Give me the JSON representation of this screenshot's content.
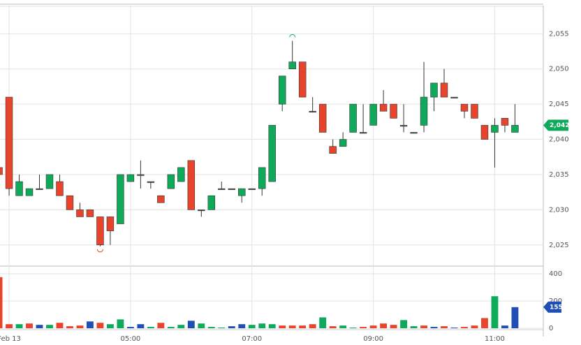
{
  "chart_data": [
    {
      "type": "candlestick",
      "x": [
        -1,
        0,
        1,
        2,
        3,
        4,
        5,
        6,
        7,
        8,
        9,
        10,
        11,
        12,
        13,
        14,
        15,
        16,
        17,
        18,
        19,
        20,
        21,
        22,
        23,
        24,
        25,
        26,
        27,
        28,
        29,
        30,
        31,
        32,
        33,
        34,
        35,
        36,
        37,
        38,
        39,
        40,
        41,
        42,
        43,
        44,
        45,
        46,
        47,
        48,
        49,
        50
      ],
      "open": [
        2036,
        2046,
        2032,
        2032,
        2033,
        2033,
        2034,
        2032,
        2030,
        2030,
        2029,
        2029,
        2028,
        2034,
        2035,
        2034,
        2032,
        2033,
        2034,
        2037,
        2030,
        2030,
        2033,
        2033,
        2032,
        2033,
        2033,
        2034,
        2045,
        2050,
        2051,
        2044,
        2045,
        2039,
        2039,
        2041,
        2041,
        2042,
        2045,
        2045,
        2042,
        2041,
        2042,
        2046,
        2048,
        2046,
        2045,
        2045,
        2042,
        2041,
        2043,
        2041
      ],
      "high": [
        2036,
        2046,
        2035,
        2033,
        2035,
        2035,
        2035,
        2032,
        2031,
        2030,
        2029,
        2029,
        2035,
        2035,
        2037,
        2034,
        2032,
        2035,
        2036,
        2037,
        2030,
        2032,
        2034,
        2033,
        2033,
        2033,
        2036,
        2042,
        2049,
        2054,
        2051,
        2046,
        2045,
        2040,
        2041,
        2045,
        2045,
        2045,
        2047,
        2045,
        2045,
        2041,
        2051,
        2048,
        2050,
        2046,
        2045,
        2045,
        2042,
        2043,
        2043,
        2045
      ],
      "low": [
        2035,
        2032,
        2032,
        2032,
        2033,
        2033,
        2032,
        2030,
        2029,
        2029,
        2024.8,
        2025,
        2028,
        2034,
        2033,
        2033,
        2031,
        2033,
        2034,
        2030,
        2029,
        2030,
        2033,
        2033,
        2031,
        2033,
        2032,
        2034,
        2044,
        2050,
        2046,
        2044,
        2041,
        2038,
        2039,
        2041,
        2041,
        2042,
        2044,
        2043,
        2041,
        2041,
        2041,
        2044,
        2046,
        2046,
        2043,
        2043,
        2040,
        2036,
        2041,
        2041
      ],
      "close": [
        2035,
        2033,
        2034,
        2033,
        2033,
        2035,
        2032,
        2030,
        2029,
        2029,
        2025,
        2027,
        2035,
        2035,
        2035,
        2034,
        2031,
        2035,
        2036,
        2030,
        2030,
        2032,
        2033,
        2033,
        2033,
        2033,
        2036,
        2042,
        2049,
        2051,
        2046,
        2044,
        2041,
        2038,
        2040,
        2045,
        2041,
        2045,
        2044,
        2043,
        2042,
        2041,
        2046,
        2048,
        2046,
        2046,
        2044,
        2043,
        2040,
        2042,
        2042,
        2042
      ],
      "up_color": "#0eaa5a",
      "down_color": "#e8442c",
      "flat_color": "#444444",
      "last_value_label": "2,042",
      "xlim": [
        -0.9,
        52.8
      ],
      "xticks": [
        {
          "value": 0,
          "label": "Feb 13"
        },
        {
          "value": 12,
          "label": "05:00"
        },
        {
          "value": 24,
          "label": "07:00"
        },
        {
          "value": 36,
          "label": "09:00"
        },
        {
          "value": 48,
          "label": "11:00"
        }
      ],
      "ylim": [
        2022.1,
        2059
      ],
      "yticks": [
        {
          "value": 2025,
          "label": "2,025"
        },
        {
          "value": 2030,
          "label": "2,030"
        },
        {
          "value": 2035,
          "label": "2,035"
        },
        {
          "value": 2040,
          "label": "2,040"
        },
        {
          "value": 2045,
          "label": "2,045"
        },
        {
          "value": 2050,
          "label": "2,050"
        },
        {
          "value": 2055,
          "label": "2,055"
        }
      ],
      "grid": true
    },
    {
      "type": "bar",
      "x": [
        -1,
        0,
        1,
        2,
        3,
        4,
        5,
        6,
        7,
        8,
        9,
        10,
        11,
        12,
        13,
        14,
        15,
        16,
        17,
        18,
        19,
        20,
        21,
        22,
        23,
        24,
        25,
        26,
        27,
        28,
        29,
        30,
        31,
        32,
        33,
        34,
        35,
        36,
        37,
        38,
        39,
        40,
        41,
        42,
        43,
        44,
        45,
        46,
        47,
        48,
        49,
        50
      ],
      "values": [
        375,
        30,
        30,
        35,
        25,
        25,
        40,
        15,
        20,
        50,
        40,
        30,
        65,
        10,
        30,
        10,
        40,
        10,
        25,
        55,
        35,
        10,
        5,
        15,
        30,
        25,
        35,
        30,
        20,
        20,
        20,
        30,
        80,
        15,
        20,
        5,
        10,
        20,
        35,
        25,
        60,
        15,
        20,
        10,
        15,
        5,
        10,
        20,
        75,
        235,
        20,
        155
      ],
      "colors": [
        "#e8442c",
        "#e8442c",
        "#0eaa5a",
        "#e8442c",
        "#1f4fb5",
        "#0eaa5a",
        "#e8442c",
        "#e8442c",
        "#e8442c",
        "#1f4fb5",
        "#e8442c",
        "#0eaa5a",
        "#0eaa5a",
        "#1f4fb5",
        "#1f4fb5",
        "#0eaa5a",
        "#e8442c",
        "#0eaa5a",
        "#0eaa5a",
        "#1f4fb5",
        "#0eaa5a",
        "#0eaa5a",
        "#0eaa5a",
        "#1f4fb5",
        "#1f4fb5",
        "#0eaa5a",
        "#0eaa5a",
        "#0eaa5a",
        "#e8442c",
        "#e8442c",
        "#e8442c",
        "#e8442c",
        "#0eaa5a",
        "#e8442c",
        "#0eaa5a",
        "#0eaa5a",
        "#e8442c",
        "#e8442c",
        "#e8442c",
        "#e8442c",
        "#0eaa5a",
        "#0eaa5a",
        "#e8442c",
        "#1f4fb5",
        "#e8442c",
        "#1f4fb5",
        "#e8442c",
        "#e8442c",
        "#e8442c",
        "#0eaa5a",
        "#1f4fb5",
        "#1f4fb5"
      ],
      "xlim": [
        -0.9,
        52.8
      ],
      "ylim": [
        -10,
        451
      ],
      "yticks": [
        0,
        200,
        400
      ],
      "grid": true
    }
  ]
}
